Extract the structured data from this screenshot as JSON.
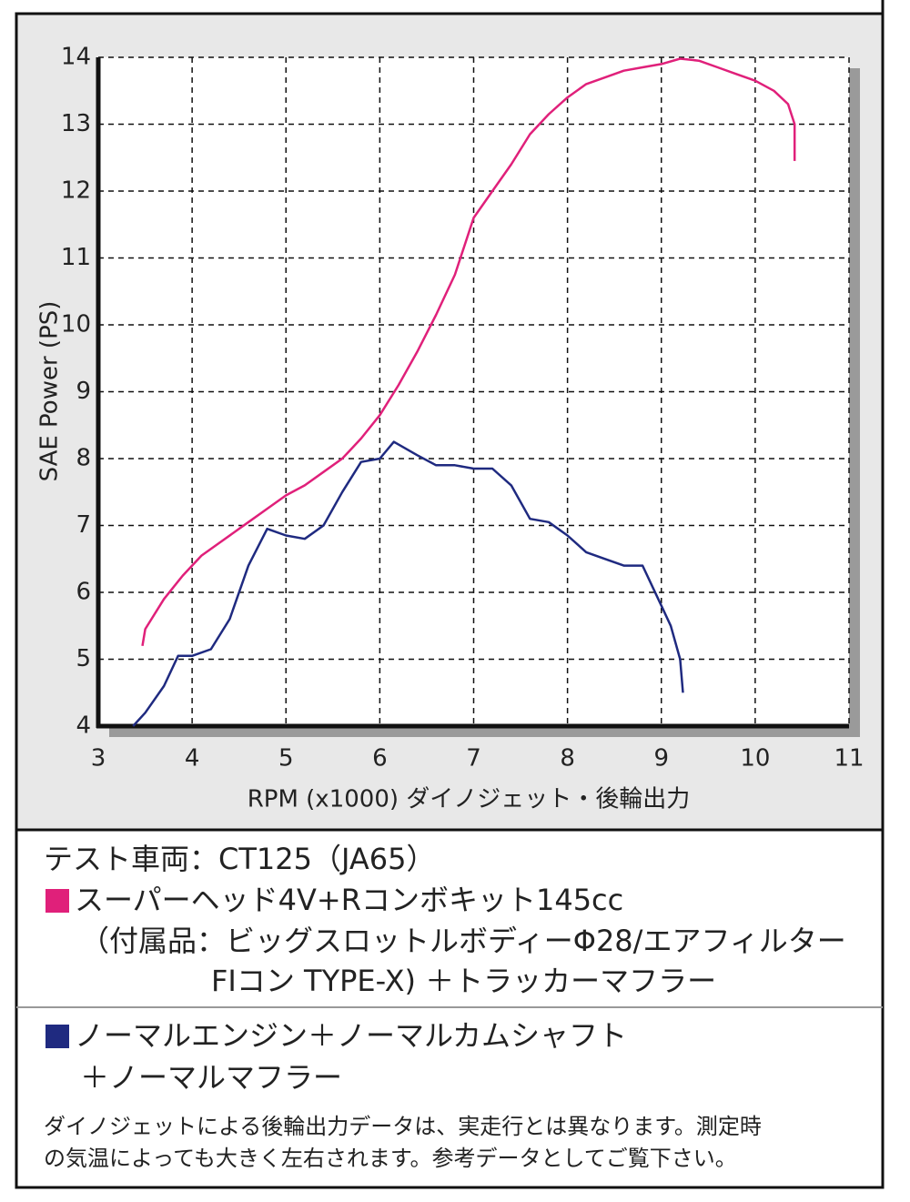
{
  "chart_data": {
    "type": "line",
    "x_label": "RPM (x1000) ダイノジェット・後輪出力",
    "y_label": "SAE Power (PS)",
    "xlim": [
      3,
      11
    ],
    "xticks": [
      3,
      4,
      5,
      6,
      7,
      8,
      9,
      10,
      11
    ],
    "ylim": [
      4,
      14
    ],
    "yticks": [
      4,
      5,
      6,
      7,
      8,
      9,
      10,
      11,
      12,
      13,
      14
    ],
    "grid": true,
    "test_vehicle": "テスト車両：CT125（JA65）",
    "series": [
      {
        "name": "スーパーヘッド4V+Rコンボキット145cc",
        "detail": [
          "（付属品：ビッグスロットルボディーΦ28/エアフィルター",
          "FIコン TYPE-X) ＋トラッカーマフラー"
        ],
        "color": "#e0207a",
        "x": [
          3.47,
          3.5,
          3.7,
          3.9,
          4.1,
          4.3,
          4.6,
          4.8,
          5.0,
          5.2,
          5.4,
          5.6,
          5.8,
          6.0,
          6.2,
          6.4,
          6.6,
          6.8,
          7.0,
          7.2,
          7.4,
          7.6,
          7.8,
          8.0,
          8.2,
          8.4,
          8.6,
          8.8,
          9.0,
          9.2,
          9.4,
          9.6,
          9.8,
          10.0,
          10.2,
          10.35,
          10.42,
          10.42
        ],
        "values": [
          5.2,
          5.45,
          5.9,
          6.25,
          6.55,
          6.75,
          7.05,
          7.25,
          7.45,
          7.6,
          7.8,
          8.0,
          8.3,
          8.65,
          9.1,
          9.6,
          10.15,
          10.75,
          11.6,
          12.0,
          12.4,
          12.85,
          13.15,
          13.4,
          13.6,
          13.7,
          13.8,
          13.85,
          13.9,
          13.98,
          13.95,
          13.85,
          13.75,
          13.65,
          13.5,
          13.3,
          13.0,
          12.45
        ]
      },
      {
        "name": "ノーマルエンジン＋ノーマルカムシャフト",
        "detail": [
          "＋ノーマルマフラー"
        ],
        "color": "#1f2a80",
        "x": [
          3.37,
          3.5,
          3.7,
          3.85,
          4.0,
          4.2,
          4.4,
          4.6,
          4.8,
          5.0,
          5.2,
          5.4,
          5.6,
          5.8,
          6.0,
          6.15,
          6.4,
          6.6,
          6.8,
          7.0,
          7.2,
          7.4,
          7.6,
          7.8,
          8.0,
          8.2,
          8.4,
          8.6,
          8.8,
          9.0,
          9.1,
          9.2,
          9.23
        ],
        "values": [
          4.0,
          4.2,
          4.6,
          5.05,
          5.05,
          5.15,
          5.6,
          6.4,
          6.95,
          6.85,
          6.8,
          7.0,
          7.5,
          7.95,
          8.0,
          8.25,
          8.05,
          7.9,
          7.9,
          7.85,
          7.85,
          7.6,
          7.1,
          7.05,
          6.85,
          6.6,
          6.5,
          6.4,
          6.4,
          5.8,
          5.5,
          5.0,
          4.5
        ]
      }
    ],
    "footnote": [
      "ダイノジェットによる後輪出力データは、実走行とは異なります。測定時",
      "の気温によっても大きく左右されます。参考データとしてご覧下さい。"
    ]
  }
}
